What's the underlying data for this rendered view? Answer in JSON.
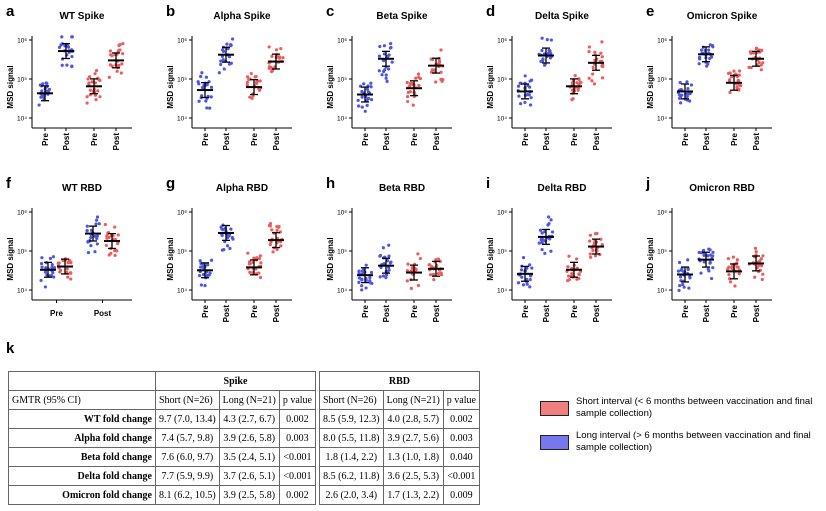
{
  "colors": {
    "short": "#ef5b5b",
    "long": "#4c55e6",
    "short_swatch": "#f08080",
    "long_swatch": "#7777ee"
  },
  "chart_data": [
    {
      "label": "a",
      "title": "WT Spike",
      "type": "scatter",
      "ylabel": "MSD signal",
      "yscale": "log",
      "ylim": [
        10000,
        1000000
      ],
      "yticks": [
        "10⁴",
        "10⁵",
        "10⁶"
      ],
      "xticklabels": [
        "Pre",
        "Post",
        "Pre",
        "Post"
      ],
      "groups": [
        {
          "interval": "long",
          "timepoint": "Pre",
          "gmt": 43000
        },
        {
          "interval": "long",
          "timepoint": "Post",
          "gmt": 520000
        },
        {
          "interval": "short",
          "timepoint": "Pre",
          "gmt": 65000
        },
        {
          "interval": "short",
          "timepoint": "Post",
          "gmt": 300000
        }
      ]
    },
    {
      "label": "b",
      "title": "Alpha Spike",
      "type": "scatter",
      "ylabel": "MSD signal",
      "yscale": "log",
      "ylim": [
        10000,
        1000000
      ],
      "yticks": [
        "10⁴",
        "10⁵",
        "10⁶"
      ],
      "xticklabels": [
        "Pre",
        "Post",
        "Pre",
        "Post"
      ],
      "groups": [
        {
          "interval": "long",
          "timepoint": "Pre",
          "gmt": 52000
        },
        {
          "interval": "long",
          "timepoint": "Post",
          "gmt": 420000
        },
        {
          "interval": "short",
          "timepoint": "Pre",
          "gmt": 62000
        },
        {
          "interval": "short",
          "timepoint": "Post",
          "gmt": 280000
        }
      ]
    },
    {
      "label": "c",
      "title": "Beta Spike",
      "type": "scatter",
      "ylabel": "MSD signal",
      "yscale": "log",
      "ylim": [
        10000,
        1000000
      ],
      "yticks": [
        "10⁴",
        "10⁵",
        "10⁶"
      ],
      "xticklabels": [
        "Pre",
        "Post",
        "Pre",
        "Post"
      ],
      "groups": [
        {
          "interval": "long",
          "timepoint": "Pre",
          "gmt": 40000
        },
        {
          "interval": "long",
          "timepoint": "Post",
          "gmt": 330000
        },
        {
          "interval": "short",
          "timepoint": "Pre",
          "gmt": 58000
        },
        {
          "interval": "short",
          "timepoint": "Post",
          "gmt": 220000
        }
      ]
    },
    {
      "label": "d",
      "title": "Delta Spike",
      "type": "scatter",
      "ylabel": "MSD signal",
      "yscale": "log",
      "ylim": [
        10000,
        1000000
      ],
      "yticks": [
        "10⁴",
        "10⁵",
        "10⁶"
      ],
      "xticklabels": [
        "Pre",
        "Post",
        "Pre",
        "Post"
      ],
      "groups": [
        {
          "interval": "long",
          "timepoint": "Pre",
          "gmt": 48000
        },
        {
          "interval": "long",
          "timepoint": "Post",
          "gmt": 400000
        },
        {
          "interval": "short",
          "timepoint": "Pre",
          "gmt": 65000
        },
        {
          "interval": "short",
          "timepoint": "Post",
          "gmt": 260000
        }
      ]
    },
    {
      "label": "e",
      "title": "Omicron Spike",
      "type": "scatter",
      "ylabel": "MSD signal",
      "yscale": "log",
      "ylim": [
        10000,
        1000000
      ],
      "yticks": [
        "10⁴",
        "10⁵",
        "10⁶"
      ],
      "xticklabels": [
        "Pre",
        "Post",
        "Pre",
        "Post"
      ],
      "groups": [
        {
          "interval": "long",
          "timepoint": "Pre",
          "gmt": 48000
        },
        {
          "interval": "long",
          "timepoint": "Post",
          "gmt": 430000
        },
        {
          "interval": "short",
          "timepoint": "Pre",
          "gmt": 80000
        },
        {
          "interval": "short",
          "timepoint": "Post",
          "gmt": 330000
        }
      ]
    },
    {
      "label": "f",
      "title": "WT RBD",
      "type": "scatter",
      "ylabel": "MSD signal",
      "yscale": "log",
      "ylim": [
        10000,
        1000000
      ],
      "yticks": [
        "10⁴",
        "10⁵",
        "10⁶"
      ],
      "xticklabels": [
        "Pre",
        "Post"
      ],
      "groups": [
        {
          "interval": "long",
          "timepoint": "Pre",
          "gmt": 33000
        },
        {
          "interval": "short",
          "timepoint": "Pre",
          "gmt": 40000
        },
        {
          "interval": "long",
          "timepoint": "Post",
          "gmt": 280000
        },
        {
          "interval": "short",
          "timepoint": "Post",
          "gmt": 180000
        }
      ]
    },
    {
      "label": "g",
      "title": "Alpha RBD",
      "type": "scatter",
      "ylabel": "MSD signal",
      "yscale": "log",
      "ylim": [
        10000,
        1000000
      ],
      "yticks": [
        "10⁴",
        "10⁵",
        "10⁶"
      ],
      "xticklabels": [
        "Pre",
        "Post",
        "Pre",
        "Post"
      ],
      "groups": [
        {
          "interval": "long",
          "timepoint": "Pre",
          "gmt": 32000
        },
        {
          "interval": "long",
          "timepoint": "Post",
          "gmt": 290000
        },
        {
          "interval": "short",
          "timepoint": "Pre",
          "gmt": 38000
        },
        {
          "interval": "short",
          "timepoint": "Post",
          "gmt": 190000
        }
      ]
    },
    {
      "label": "h",
      "title": "Beta RBD",
      "type": "scatter",
      "ylabel": "MSD signal",
      "yscale": "log",
      "ylim": [
        10000,
        1000000
      ],
      "yticks": [
        "10⁴",
        "10⁵",
        "10⁶"
      ],
      "xticklabels": [
        "Pre",
        "Post",
        "Pre",
        "Post"
      ],
      "groups": [
        {
          "interval": "long",
          "timepoint": "Pre",
          "gmt": 24000
        },
        {
          "interval": "long",
          "timepoint": "Post",
          "gmt": 42000
        },
        {
          "interval": "short",
          "timepoint": "Pre",
          "gmt": 28000
        },
        {
          "interval": "short",
          "timepoint": "Post",
          "gmt": 35000
        }
      ]
    },
    {
      "label": "i",
      "title": "Delta RBD",
      "type": "scatter",
      "ylabel": "MSD signal",
      "yscale": "log",
      "ylim": [
        10000,
        1000000
      ],
      "yticks": [
        "10⁴",
        "10⁵",
        "10⁶"
      ],
      "xticklabels": [
        "Pre",
        "Post",
        "Pre",
        "Post"
      ],
      "groups": [
        {
          "interval": "long",
          "timepoint": "Pre",
          "gmt": 26000
        },
        {
          "interval": "long",
          "timepoint": "Post",
          "gmt": 230000
        },
        {
          "interval": "short",
          "timepoint": "Pre",
          "gmt": 33000
        },
        {
          "interval": "short",
          "timepoint": "Post",
          "gmt": 130000
        }
      ]
    },
    {
      "label": "j",
      "title": "Omicron RBD",
      "type": "scatter",
      "ylabel": "MSD signal",
      "yscale": "log",
      "ylim": [
        10000,
        1000000
      ],
      "yticks": [
        "10⁴",
        "10⁵",
        "10⁶"
      ],
      "xticklabels": [
        "Pre",
        "Post",
        "Pre",
        "Post"
      ],
      "groups": [
        {
          "interval": "long",
          "timepoint": "Pre",
          "gmt": 25000
        },
        {
          "interval": "long",
          "timepoint": "Post",
          "gmt": 60000
        },
        {
          "interval": "short",
          "timepoint": "Pre",
          "gmt": 30000
        },
        {
          "interval": "short",
          "timepoint": "Post",
          "gmt": 48000
        }
      ]
    }
  ],
  "table": {
    "label": "k",
    "group_headers": {
      "spike": "Spike",
      "rbd": "RBD"
    },
    "col_headers": {
      "gmtr": "GMTR (95% CI)",
      "short": "Short (N=26)",
      "long": "Long (N=21)",
      "p": "p value"
    },
    "rows": [
      {
        "label": "WT fold change",
        "spike": [
          "9.7 (7.0, 13.4)",
          "4.3 (2.7, 6.7)",
          "0.002"
        ],
        "rbd": [
          "8.5 (5.9, 12.3)",
          "4.0 (2.8, 5.7)",
          "0.002"
        ]
      },
      {
        "label": "Alpha fold change",
        "spike": [
          "7.4 (5.7, 9.8)",
          "3.9 (2.6, 5.8)",
          "0.003"
        ],
        "rbd": [
          "8.0 (5.5, 11.8)",
          "3.9 (2.7, 5.6)",
          "0.003"
        ]
      },
      {
        "label": "Beta fold change",
        "spike": [
          "7.6 (6.0, 9.7)",
          "3.5 (2.4, 5.1)",
          "<0.001"
        ],
        "rbd": [
          "1.8 (1.4, 2.2)",
          "1.3 (1.0, 1.8)",
          "0.040"
        ]
      },
      {
        "label": "Delta fold change",
        "spike": [
          "7.7 (5.9, 9.9)",
          "3.7 (2.6, 5.1)",
          "<0.001"
        ],
        "rbd": [
          "8.5 (6.2, 11.8)",
          "3.6 (2.5, 5.3)",
          "<0.001"
        ]
      },
      {
        "label": "Omicron fold change",
        "spike": [
          "8.1 (6.2, 10.5)",
          "3.9 (2.5, 5.8)",
          "0.002"
        ],
        "rbd": [
          "2.6 (2.0, 3.4)",
          "1.7 (1.3, 2.2)",
          "0.009"
        ]
      }
    ]
  },
  "legend": {
    "short": "Short interval (< 6 months between vaccination and final sample collection)",
    "long": "Long interval (> 6 months between vaccination and final sample collection)"
  }
}
